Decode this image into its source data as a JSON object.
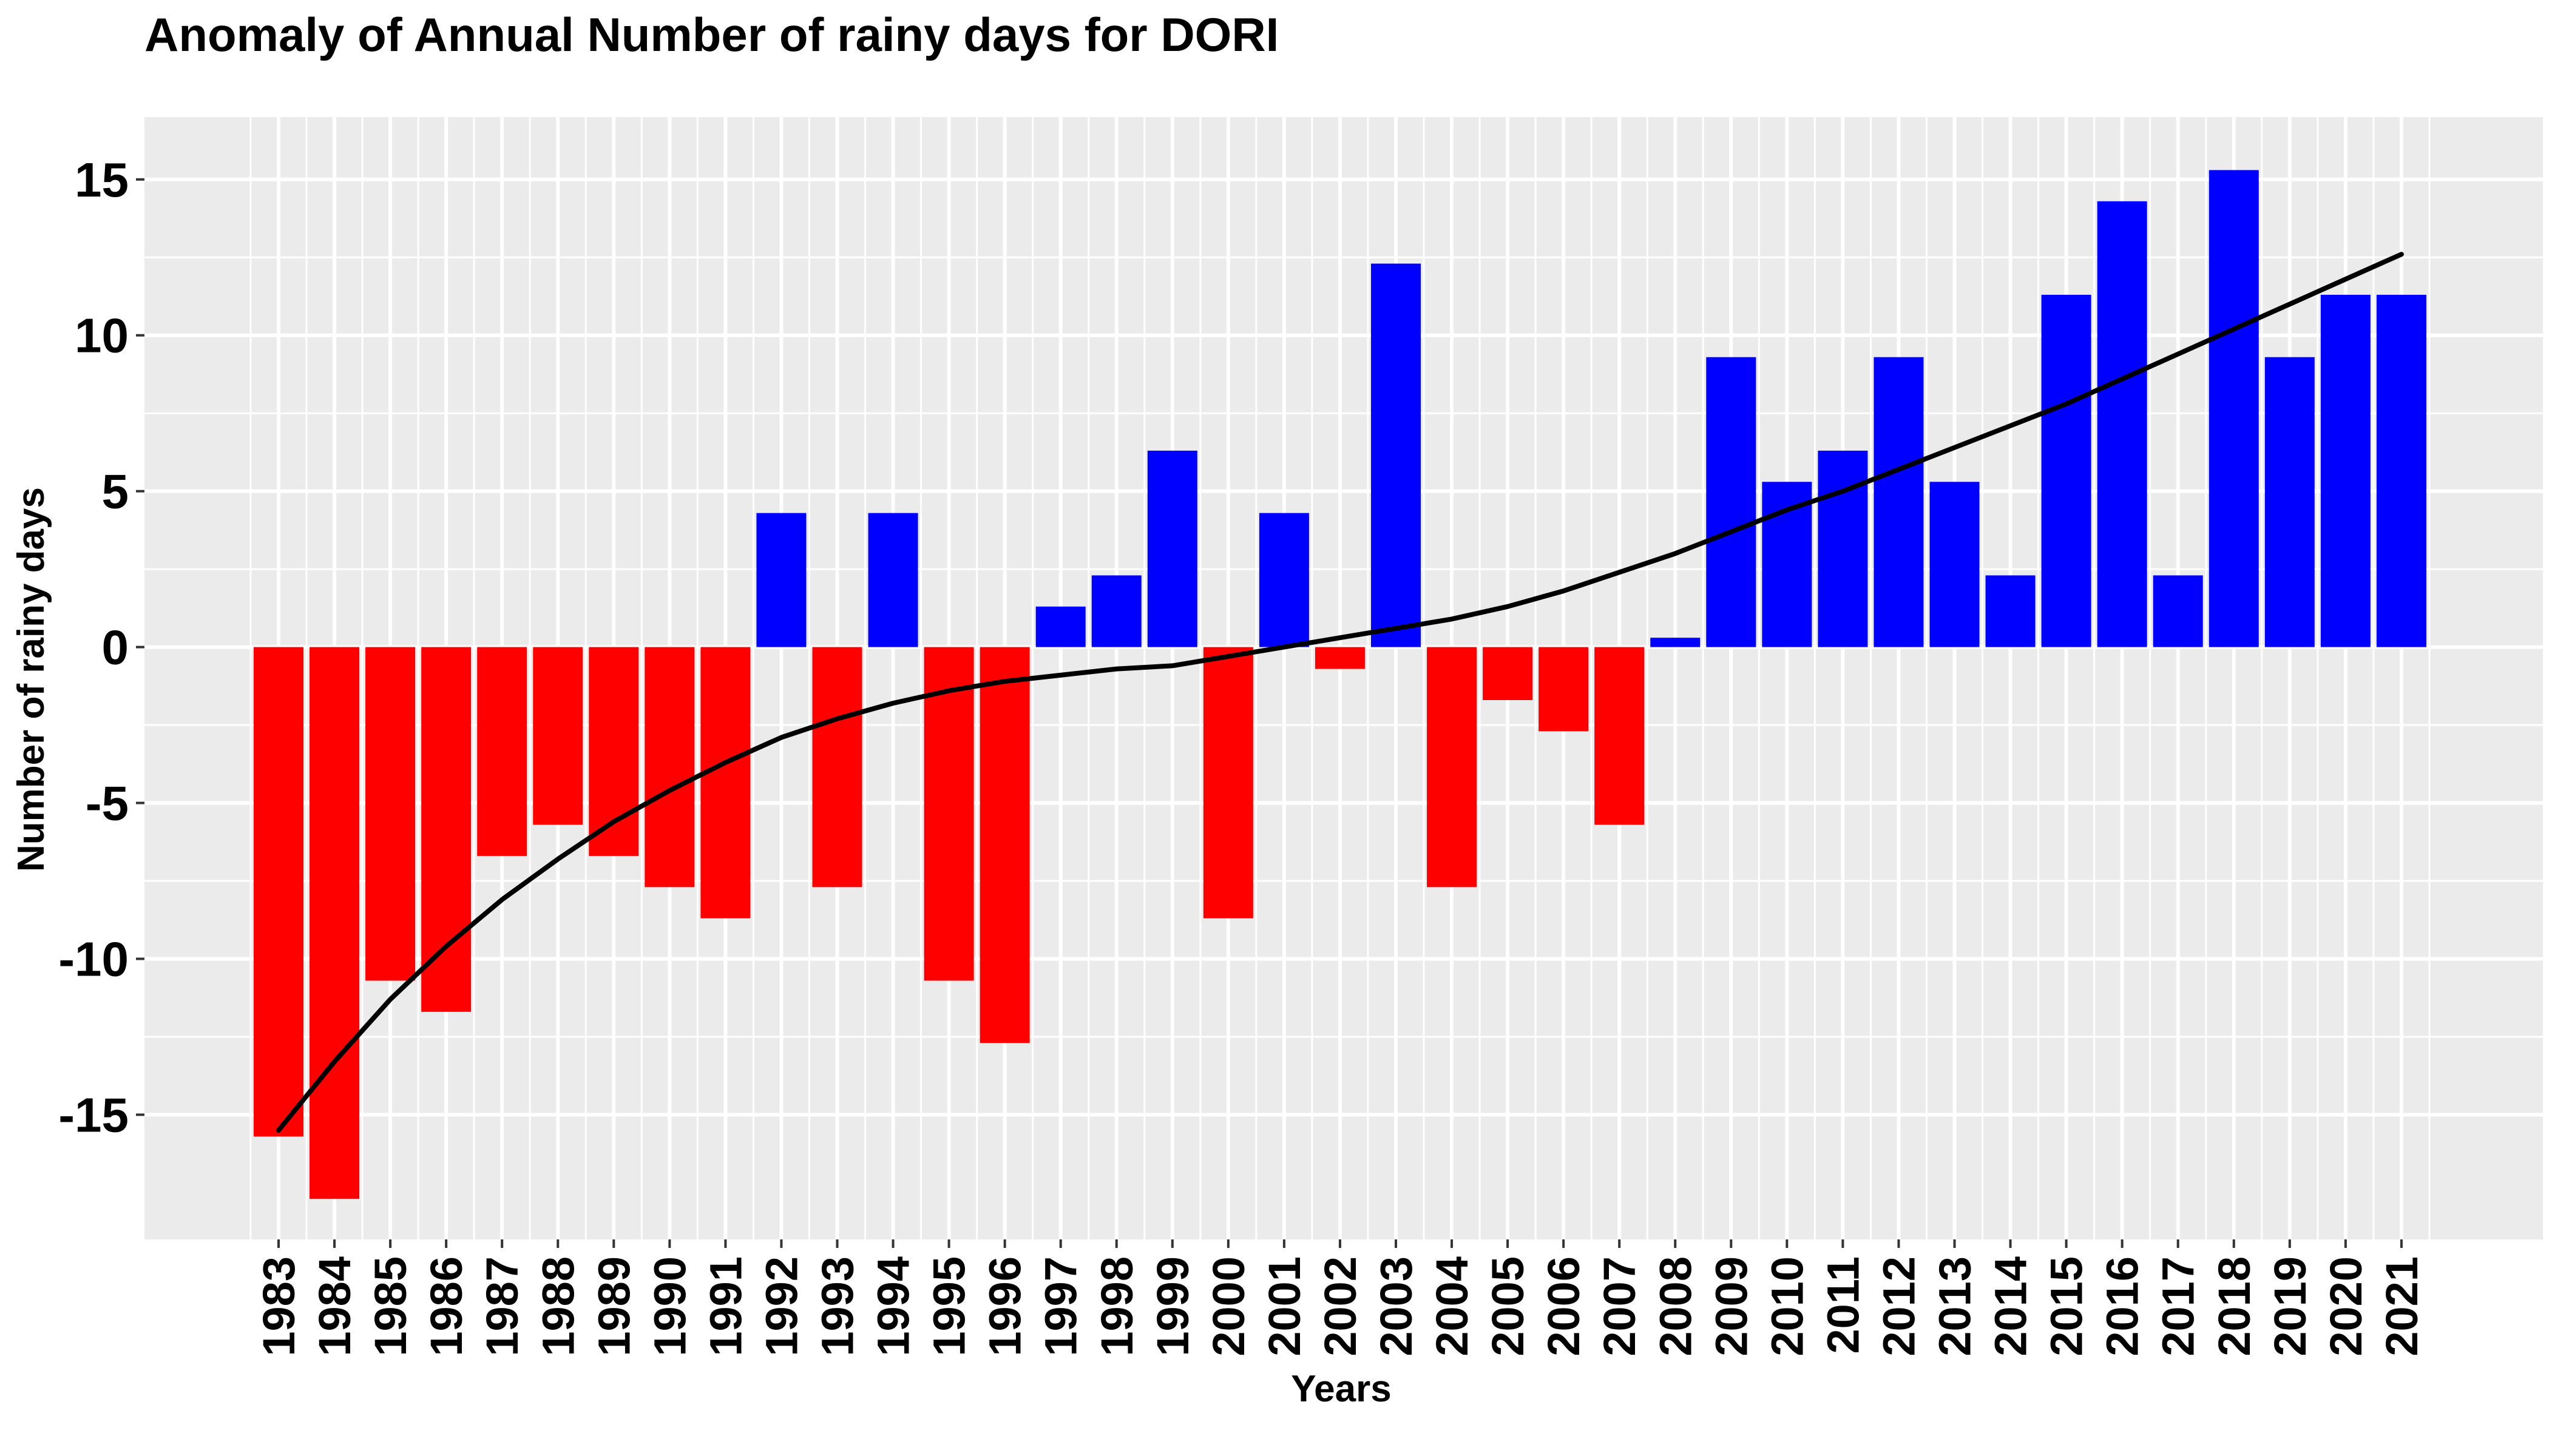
{
  "chart_data": {
    "type": "bar",
    "title": "Anomaly of Annual Number of rainy days for DORI",
    "xlabel": "Years",
    "ylabel": "Number of rainy days",
    "ylim": [
      -19,
      17
    ],
    "yticks": [
      -15,
      -10,
      -5,
      0,
      5,
      10,
      15
    ],
    "ytick_labels": [
      "-15",
      "-10",
      "-5",
      "0",
      "5",
      "10",
      "15"
    ],
    "grid": true,
    "legend": "none",
    "colors": {
      "positive": "#0000ff",
      "negative": "#ff0000",
      "trend": "#000000",
      "panel": "#ebebeb",
      "grid": "#ffffff"
    },
    "categories": [
      "1983",
      "1984",
      "1985",
      "1986",
      "1987",
      "1988",
      "1989",
      "1990",
      "1991",
      "1992",
      "1993",
      "1994",
      "1995",
      "1996",
      "1997",
      "1998",
      "1999",
      "2000",
      "2001",
      "2002",
      "2003",
      "2004",
      "2005",
      "2006",
      "2007",
      "2008",
      "2009",
      "2010",
      "2011",
      "2012",
      "2013",
      "2014",
      "2015",
      "2016",
      "2017",
      "2018",
      "2019",
      "2020",
      "2021"
    ],
    "values": [
      -15.7,
      -17.7,
      -10.7,
      -11.7,
      -6.7,
      -5.7,
      -6.7,
      -7.7,
      -8.7,
      4.3,
      -7.7,
      4.3,
      -10.7,
      -12.7,
      1.3,
      2.3,
      6.3,
      -8.7,
      4.3,
      -0.7,
      12.3,
      -7.7,
      -1.7,
      -2.7,
      -5.7,
      0.3,
      9.3,
      5.3,
      6.3,
      9.3,
      5.3,
      2.3,
      11.3,
      14.3,
      2.3,
      15.3,
      9.3,
      11.3,
      11.3
    ],
    "trend": {
      "type": "line",
      "values": [
        -15.5,
        -13.3,
        -11.3,
        -9.6,
        -8.1,
        -6.8,
        -5.6,
        -4.6,
        -3.7,
        -2.9,
        -2.3,
        -1.8,
        -1.4,
        -1.1,
        -0.9,
        -0.7,
        -0.6,
        -0.3,
        0.0,
        0.3,
        0.6,
        0.9,
        1.3,
        1.8,
        2.4,
        3.0,
        3.7,
        4.4,
        5.0,
        5.7,
        6.4,
        7.1,
        7.8,
        8.6,
        9.4,
        10.2,
        11.0,
        11.8,
        12.6
      ]
    }
  }
}
